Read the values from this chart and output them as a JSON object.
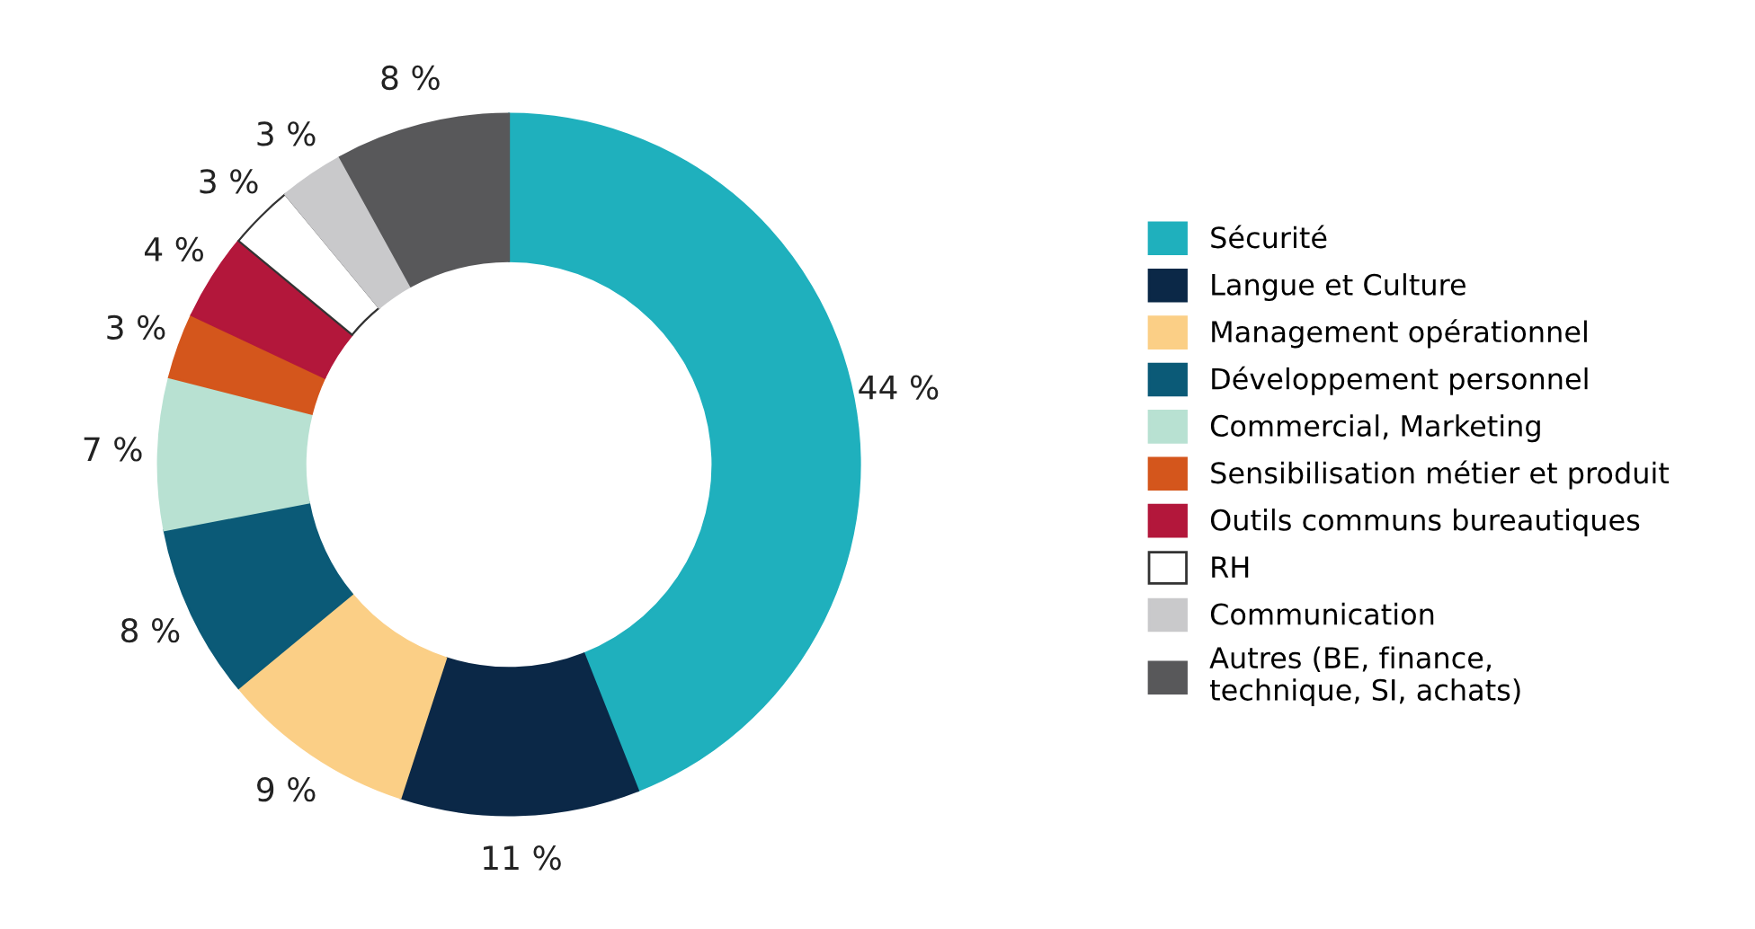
{
  "chart_data": {
    "type": "donut",
    "categories": [
      "Sécurité",
      "Langue et Culture",
      "Management opérationnel",
      "Développement personnel",
      "Commercial, Marketing",
      "Sensibilisation métier et produit",
      "Outils communs bureautiques",
      "RH",
      "Communication",
      "Autres (BE, finance,\ntechnique, SI, achats)"
    ],
    "values": [
      44,
      11,
      9,
      8,
      7,
      3,
      4,
      3,
      3,
      8
    ],
    "value_labels": [
      "44 %",
      "11 %",
      "9 %",
      "8 %",
      "7 %",
      "3 %",
      "4 %",
      "3 %",
      "3 %",
      "8 %"
    ],
    "colors": [
      "#1fb0bd",
      "#0b2847",
      "#fbcf86",
      "#0b5a77",
      "#b8e1d2",
      "#d4561c",
      "#b3173b",
      "#ffffff",
      "#c9c9cb",
      "#58585a"
    ],
    "legend": "right"
  }
}
